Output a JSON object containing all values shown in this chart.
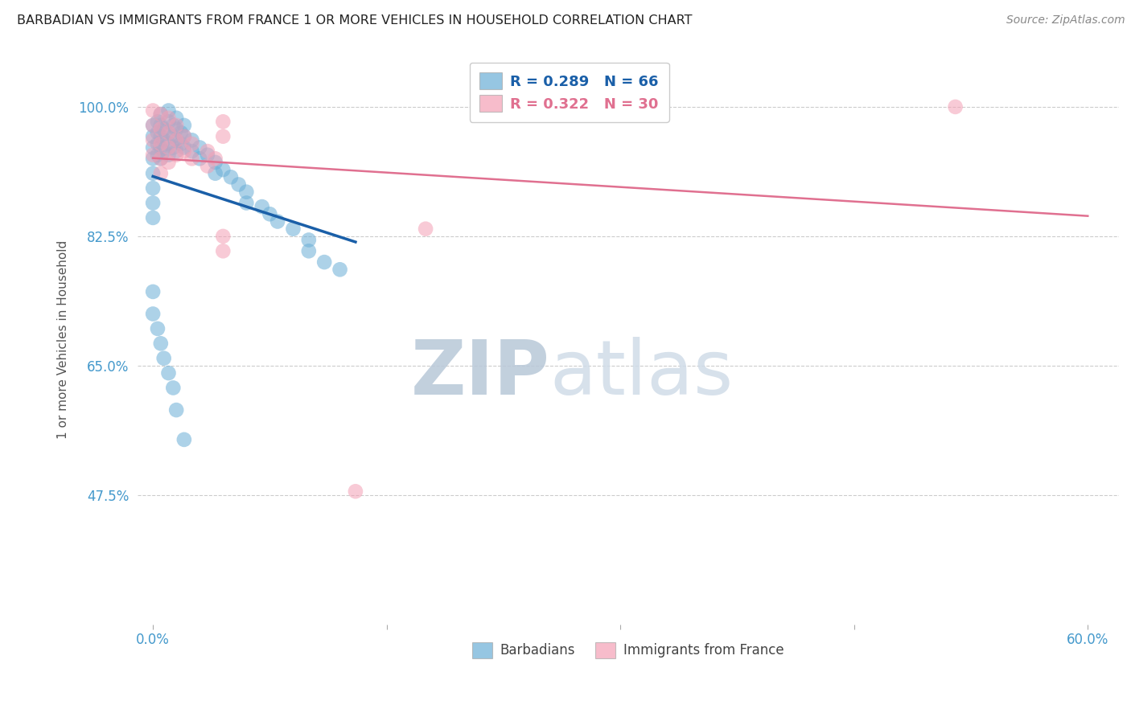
{
  "title": "BARBADIAN VS IMMIGRANTS FROM FRANCE 1 OR MORE VEHICLES IN HOUSEHOLD CORRELATION CHART",
  "source": "Source: ZipAtlas.com",
  "ylabel": "1 or more Vehicles in Household",
  "yticks": [
    47.5,
    65.0,
    82.5,
    100.0
  ],
  "xticks": [
    0.0,
    15.0,
    30.0,
    45.0,
    60.0
  ],
  "xlim": [
    -1.0,
    62.0
  ],
  "ylim": [
    30.0,
    107.0
  ],
  "R_barbadian": 0.289,
  "N_barbadian": 66,
  "R_france": 0.322,
  "N_france": 30,
  "color_barbadian": "#6aaed6",
  "color_france": "#f4a0b5",
  "trendline_barbadian_color": "#1a5fa8",
  "trendline_france_color": "#e07090",
  "barbadian_x": [
    0.0,
    0.0,
    0.0,
    0.0,
    0.0,
    0.0,
    0.0,
    0.0,
    0.3,
    0.3,
    0.3,
    0.3,
    0.5,
    0.5,
    0.5,
    0.5,
    0.5,
    0.7,
    0.7,
    0.7,
    1.0,
    1.0,
    1.0,
    1.0,
    1.0,
    1.3,
    1.3,
    1.3,
    1.5,
    1.5,
    1.5,
    1.5,
    1.8,
    1.8,
    2.0,
    2.0,
    2.0,
    2.5,
    2.5,
    3.0,
    3.0,
    3.5,
    4.0,
    4.0,
    4.5,
    5.0,
    5.5,
    6.0,
    6.0,
    7.0,
    7.5,
    8.0,
    9.0,
    10.0,
    10.0,
    11.0,
    12.0,
    0.0,
    0.0,
    0.3,
    0.5,
    0.7,
    1.0,
    1.3,
    1.5,
    2.0
  ],
  "barbadian_y": [
    97.5,
    96.0,
    94.5,
    93.0,
    91.0,
    89.0,
    87.0,
    85.0,
    98.0,
    96.5,
    95.0,
    93.5,
    99.0,
    97.5,
    96.0,
    94.5,
    93.0,
    97.0,
    95.5,
    94.0,
    99.5,
    98.0,
    96.5,
    95.0,
    93.5,
    97.5,
    96.0,
    94.5,
    98.5,
    97.0,
    95.5,
    94.0,
    96.5,
    95.0,
    97.5,
    96.0,
    94.5,
    95.5,
    94.0,
    94.5,
    93.0,
    93.5,
    92.5,
    91.0,
    91.5,
    90.5,
    89.5,
    88.5,
    87.0,
    86.5,
    85.5,
    84.5,
    83.5,
    82.0,
    80.5,
    79.0,
    78.0,
    75.0,
    72.0,
    70.0,
    68.0,
    66.0,
    64.0,
    62.0,
    59.0,
    55.0
  ],
  "france_x": [
    0.0,
    0.0,
    0.0,
    0.0,
    0.5,
    0.5,
    0.5,
    0.5,
    0.5,
    1.0,
    1.0,
    1.0,
    1.0,
    1.5,
    1.5,
    1.5,
    2.0,
    2.0,
    2.5,
    2.5,
    3.5,
    3.5,
    4.0,
    4.5,
    4.5,
    4.5,
    4.5,
    13.0,
    17.5,
    51.5
  ],
  "france_y": [
    99.5,
    97.5,
    95.5,
    93.5,
    99.0,
    97.0,
    95.0,
    93.0,
    91.0,
    98.5,
    96.5,
    94.5,
    92.5,
    97.5,
    95.5,
    93.5,
    96.0,
    94.0,
    95.0,
    93.0,
    94.0,
    92.0,
    93.0,
    98.0,
    96.0,
    82.5,
    80.5,
    48.0,
    83.5,
    100.0
  ],
  "watermark_zip": "ZIP",
  "watermark_atlas": "atlas",
  "watermark_color": "#c8d8e8",
  "background_color": "#ffffff",
  "grid_color": "#cccccc",
  "title_color": "#222222",
  "axis_label_color": "#555555",
  "tick_label_color": "#4499cc"
}
